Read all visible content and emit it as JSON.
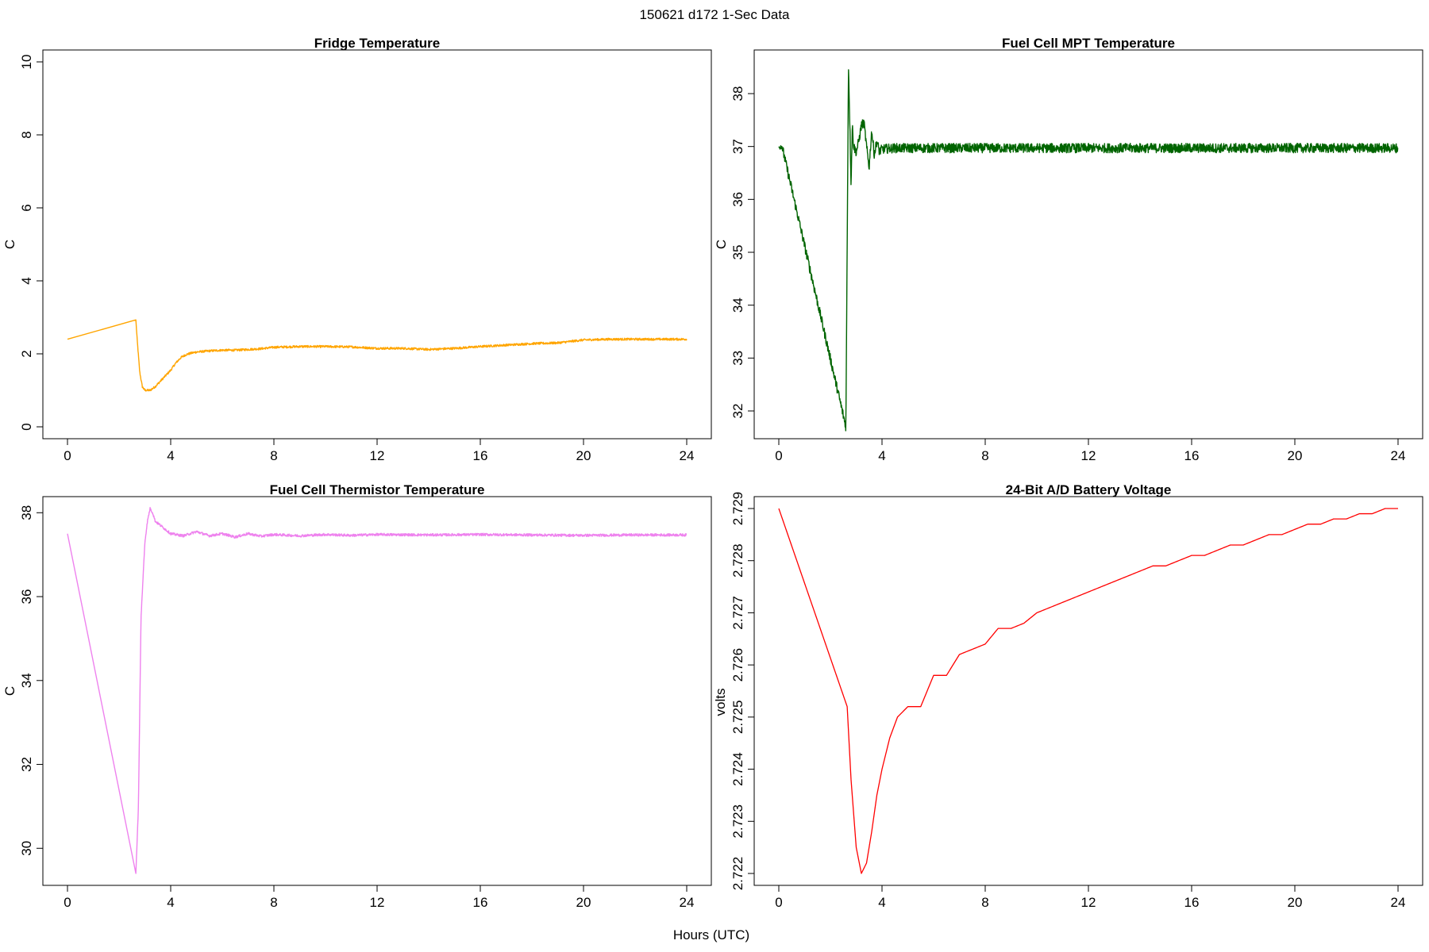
{
  "page": {
    "title": "150621   d172   1-Sec Data",
    "xlabel": "Hours (UTC)"
  },
  "chart_data": [
    {
      "type": "line",
      "title": "Fridge Temperature",
      "ylabel": "C",
      "xlabel": "",
      "xlim": [
        0,
        24
      ],
      "ylim": [
        0,
        10
      ],
      "xticks": [
        0,
        4,
        8,
        12,
        16,
        20,
        24
      ],
      "yticks": [
        0,
        2,
        4,
        6,
        8,
        10
      ],
      "color": "#FFA500",
      "noise": 0.03,
      "x": [
        0,
        2.65,
        2.7,
        2.8,
        2.9,
        3.0,
        3.2,
        3.4,
        3.6,
        3.8,
        4.0,
        4.2,
        4.4,
        4.6,
        4.8,
        5.0,
        5.5,
        6.0,
        6.5,
        7.0,
        7.5,
        8.0,
        9.0,
        10.0,
        11.0,
        12.0,
        13.0,
        14.0,
        15.0,
        16.0,
        17.0,
        18.0,
        19.0,
        20.0,
        21.0,
        22.0,
        23.0,
        24.0
      ],
      "y": [
        2.4,
        2.93,
        2.4,
        1.5,
        1.1,
        1.0,
        1.0,
        1.1,
        1.25,
        1.4,
        1.55,
        1.75,
        1.9,
        1.98,
        2.02,
        2.05,
        2.08,
        2.1,
        2.1,
        2.12,
        2.14,
        2.18,
        2.2,
        2.2,
        2.19,
        2.15,
        2.15,
        2.12,
        2.15,
        2.2,
        2.24,
        2.28,
        2.3,
        2.38,
        2.4,
        2.4,
        2.4,
        2.4
      ]
    },
    {
      "type": "line",
      "title": "Fuel Cell MPT Temperature",
      "ylabel": "C",
      "xlabel": "",
      "xlim": [
        0,
        24
      ],
      "ylim": [
        31.7,
        38.6
      ],
      "xticks": [
        0,
        4,
        8,
        12,
        16,
        20,
        24
      ],
      "yticks": [
        32,
        33,
        34,
        35,
        36,
        37,
        38
      ],
      "color": "#006400",
      "noise": 0.09,
      "x": [
        0,
        0.05,
        0.1,
        2.6,
        2.7,
        2.75,
        2.8,
        2.85,
        2.9,
        3.0,
        3.1,
        3.2,
        3.3,
        3.4,
        3.5,
        3.6,
        3.7,
        3.8,
        3.9,
        4.0,
        4.5,
        5.0,
        6.0,
        8.0,
        10.0,
        12.0,
        14.0,
        16.0,
        18.0,
        20.0,
        22.0,
        24.0
      ],
      "y": [
        37.0,
        36.95,
        37.05,
        31.7,
        38.55,
        37.5,
        36.3,
        37.4,
        37.0,
        36.9,
        37.1,
        37.4,
        37.45,
        37.0,
        36.6,
        37.3,
        36.85,
        37.1,
        36.9,
        36.95,
        36.97,
        36.97,
        36.97,
        36.97,
        36.97,
        36.97,
        36.97,
        36.97,
        36.97,
        36.97,
        36.97,
        36.97
      ]
    },
    {
      "type": "line",
      "title": "Fuel Cell Thermistor Temperature",
      "ylabel": "C",
      "xlabel": "",
      "xlim": [
        0,
        24
      ],
      "ylim": [
        29.4,
        38.1
      ],
      "xticks": [
        0,
        4,
        8,
        12,
        16,
        20,
        24
      ],
      "yticks": [
        30,
        32,
        34,
        36,
        38
      ],
      "color": "#EE82EE",
      "noise": 0.03,
      "x": [
        0,
        2.65,
        2.75,
        2.85,
        3.0,
        3.1,
        3.2,
        3.3,
        3.4,
        3.6,
        3.8,
        4.0,
        4.5,
        5.0,
        5.5,
        6.0,
        6.5,
        7.0,
        7.5,
        8.0,
        9.0,
        10.0,
        11.0,
        12.0,
        14.0,
        16.0,
        18.0,
        20.0,
        22.0,
        24.0
      ],
      "y": [
        37.5,
        29.4,
        31.0,
        35.5,
        37.3,
        37.8,
        38.1,
        38.0,
        37.8,
        37.7,
        37.6,
        37.5,
        37.45,
        37.55,
        37.45,
        37.5,
        37.42,
        37.5,
        37.44,
        37.48,
        37.45,
        37.48,
        37.46,
        37.48,
        37.47,
        37.48,
        37.47,
        37.46,
        37.47,
        37.47
      ]
    },
    {
      "type": "line",
      "title": "24-Bit A/D Battery Voltage",
      "ylabel": "volts",
      "xlabel": "",
      "xlim": [
        0,
        24
      ],
      "ylim": [
        2.722,
        2.729
      ],
      "xticks": [
        0,
        4,
        8,
        12,
        16,
        20,
        24
      ],
      "yticks": [
        2.722,
        2.723,
        2.724,
        2.725,
        2.726,
        2.727,
        2.728,
        2.729
      ],
      "color": "#FF0000",
      "noise": 0,
      "x": [
        0,
        2.65,
        2.8,
        3.0,
        3.2,
        3.4,
        3.6,
        3.8,
        4.0,
        4.3,
        4.6,
        5.0,
        5.5,
        6.0,
        6.5,
        7.0,
        7.5,
        8.0,
        8.5,
        9.0,
        9.5,
        10.0,
        10.5,
        11.0,
        11.5,
        12.0,
        12.5,
        13.0,
        13.5,
        14.0,
        14.5,
        15.0,
        15.5,
        16.0,
        16.5,
        17.0,
        17.5,
        18.0,
        18.5,
        19.0,
        19.5,
        20.0,
        20.5,
        21.0,
        21.5,
        22.0,
        22.5,
        23.0,
        23.5,
        24.0
      ],
      "y": [
        2.729,
        2.7252,
        2.7238,
        2.7225,
        2.722,
        2.7222,
        2.7228,
        2.7235,
        2.724,
        2.7246,
        2.725,
        2.7252,
        2.7252,
        2.7258,
        2.7258,
        2.7262,
        2.7263,
        2.7264,
        2.7267,
        2.7267,
        2.7268,
        2.727,
        2.7271,
        2.7272,
        2.7273,
        2.7274,
        2.7275,
        2.7276,
        2.7277,
        2.7278,
        2.7279,
        2.7279,
        2.728,
        2.7281,
        2.7281,
        2.7282,
        2.7283,
        2.7283,
        2.7284,
        2.7285,
        2.7285,
        2.7286,
        2.7287,
        2.7287,
        2.7288,
        2.7288,
        2.7289,
        2.7289,
        2.729,
        2.729
      ]
    }
  ]
}
